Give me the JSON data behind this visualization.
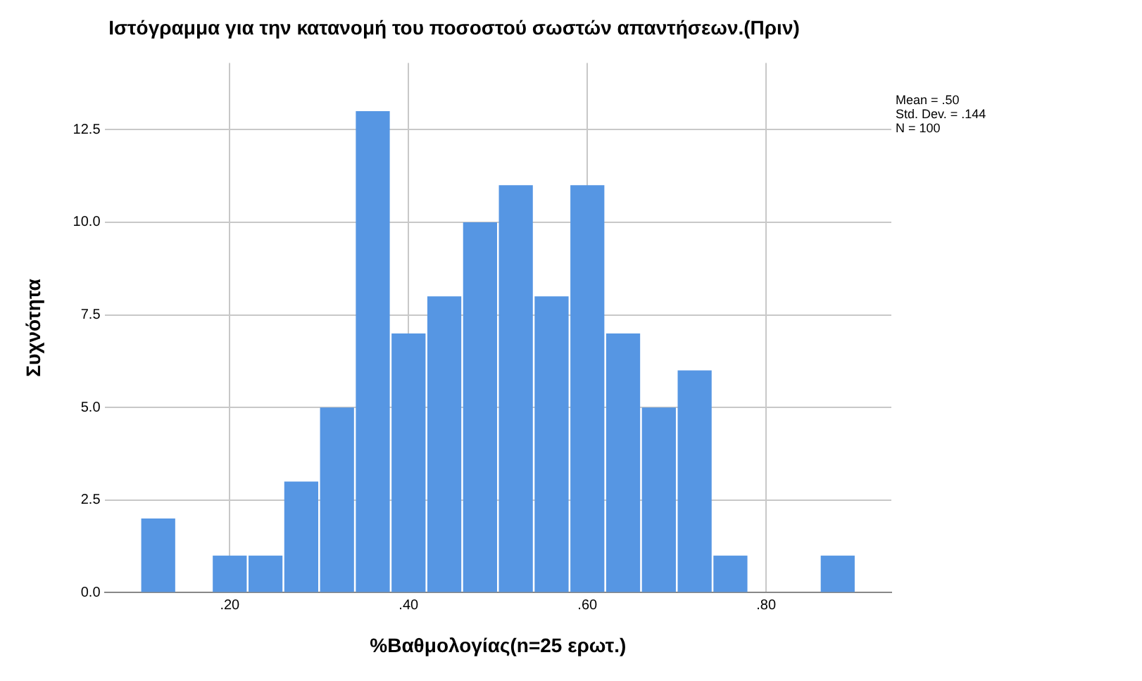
{
  "chart_data": {
    "type": "histogram",
    "title": "Ιστόγραμμα για την κατανομή του ποσοστού σωστών απαντήσεων.(Πριν)",
    "xlabel": "%Βαθμολογίας(n=25 ερωτ.)",
    "ylabel": "Συχνότητα",
    "bins": [
      0.1,
      0.14,
      0.18,
      0.22,
      0.26,
      0.3,
      0.34,
      0.38,
      0.42,
      0.46,
      0.5,
      0.54,
      0.58,
      0.62,
      0.66,
      0.7,
      0.74,
      0.78,
      0.82,
      0.86,
      0.9
    ],
    "values": [
      2,
      0,
      1,
      1,
      3,
      5,
      13,
      7,
      8,
      10,
      11,
      8,
      11,
      7,
      5,
      6,
      1,
      0,
      0,
      1
    ],
    "color": "#5696e3",
    "xlim": [
      0.06,
      0.94
    ],
    "xticks": [
      {
        "value": 0.2,
        "label": ".20"
      },
      {
        "value": 0.4,
        "label": ".40"
      },
      {
        "value": 0.6,
        "label": ".60"
      },
      {
        "value": 0.8,
        "label": ".80"
      }
    ],
    "ylim": [
      0,
      14.3
    ],
    "yticks": [
      {
        "value": 0,
        "label": "0.0"
      },
      2.5,
      {
        "value": 5,
        "label": "5.0"
      },
      7.5,
      {
        "value": 10,
        "label": "10.0"
      },
      12.5
    ],
    "grid": true,
    "annotations": [
      "Mean = .50",
      "Std. Dev. = .144",
      "N = 100"
    ]
  }
}
